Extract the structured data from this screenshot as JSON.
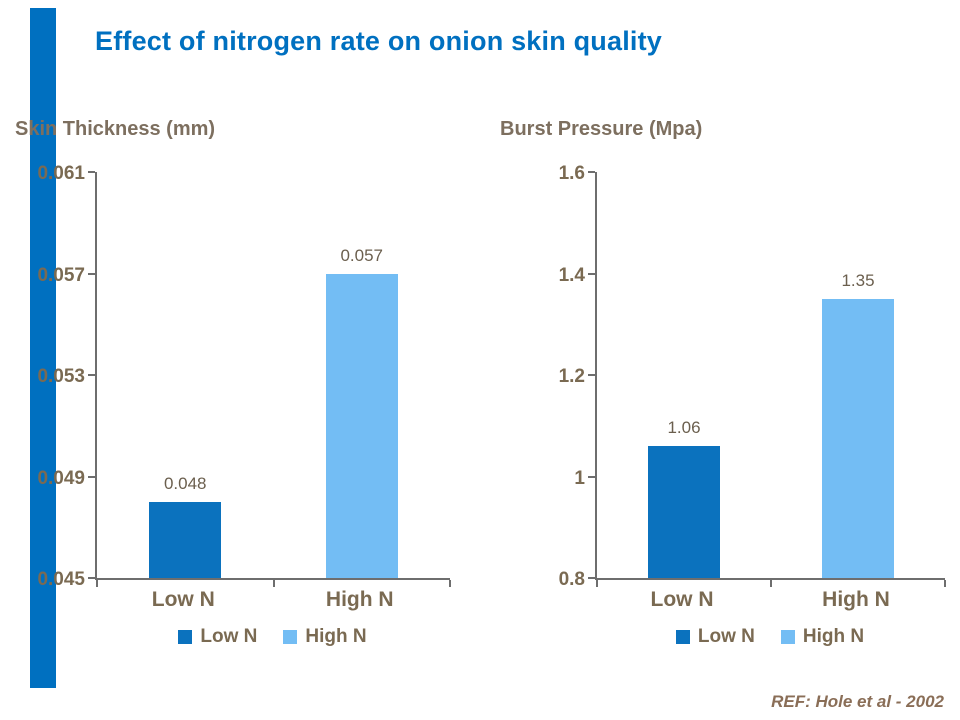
{
  "slide": {
    "title": "Effect of nitrogen rate on onion skin quality",
    "reference": "REF: Hole et al -  2002"
  },
  "colors": {
    "title_blue": "#0070C0",
    "accent_bar": "#0070C0",
    "axis_line": "#6E6E6E",
    "text_brown": "#7A6A52",
    "chart_title": "#7D6F5F",
    "data_label": "#6B5F4E",
    "ref_brown": "#8A6E57",
    "low_n_blue": "#0B72BE",
    "high_n_blue": "#73BDF4"
  },
  "chart_data": [
    {
      "type": "bar",
      "title": "Skin Thickness (mm)",
      "categories": [
        "Low N",
        "High N"
      ],
      "values": [
        0.048,
        0.057
      ],
      "value_labels": [
        "0.048",
        "0.057"
      ],
      "bar_colors": [
        "#0B72BE",
        "#73BDF4"
      ],
      "ylim": [
        0.045,
        0.061
      ],
      "yticks": [
        0.045,
        0.049,
        0.053,
        0.057,
        0.061
      ],
      "ytick_labels": [
        "0.045",
        "0.049",
        "0.053",
        "0.057",
        "0.061"
      ],
      "legend": [
        "Low N",
        "High N"
      ],
      "legend_position": "bottom",
      "grid": false,
      "xlabel": "",
      "ylabel": "Skin Thickness (mm)"
    },
    {
      "type": "bar",
      "title": "Burst Pressure (Mpa)",
      "categories": [
        "Low N",
        "High N"
      ],
      "values": [
        1.06,
        1.35
      ],
      "value_labels": [
        "1.06",
        "1.35"
      ],
      "bar_colors": [
        "#0B72BE",
        "#73BDF4"
      ],
      "ylim": [
        0.8,
        1.6
      ],
      "yticks": [
        0.8,
        1.0,
        1.2,
        1.4,
        1.6
      ],
      "ytick_labels": [
        "0.8",
        "1",
        "1.2",
        "1.4",
        "1.6"
      ],
      "legend": [
        "Low N",
        "High N"
      ],
      "legend_position": "bottom",
      "grid": false,
      "xlabel": "",
      "ylabel": "Burst Pressure (Mpa)"
    }
  ]
}
